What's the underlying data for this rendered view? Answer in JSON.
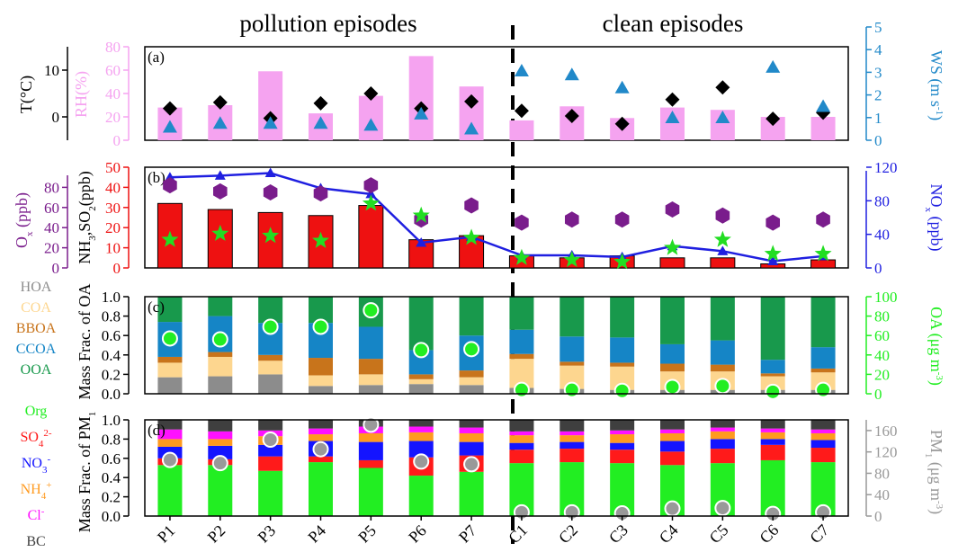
{
  "headings": {
    "left": "pollution episodes",
    "right": "clean episodes"
  },
  "categories": [
    "P1",
    "P2",
    "P3",
    "P4",
    "P5",
    "P6",
    "P7",
    "C1",
    "C2",
    "C3",
    "C4",
    "C5",
    "C6",
    "C7"
  ],
  "colors": {
    "rh": "#f5a3f0",
    "t": "#000000",
    "ws": "#2189c9",
    "so2": "#ee1111",
    "nox": "#1f1fe0",
    "ox": "#7a1d8c",
    "nh3": "#22dd22",
    "hoa": "#8c8c8c",
    "coa": "#fdd68f",
    "bboa": "#c8741b",
    "ccoa": "#1585c6",
    "ooa": "#18994c",
    "org": "#22ee22",
    "so4": "#ff1a1a",
    "no3": "#1414ff",
    "nh4": "#ff9a1f",
    "cl": "#ff11ff",
    "bc": "#3f3f3f",
    "oa_marker": "#22ee22",
    "pm_marker": "#999999"
  },
  "chart_data": [
    {
      "panel": "(a)",
      "type": "bar",
      "left_axis_label": "T(°C)",
      "left_ticks": [
        "0",
        "10"
      ],
      "t_range": [
        -5,
        15
      ],
      "mid_axis_label": "RH(%)",
      "mid_ticks": [
        "0",
        "20",
        "40",
        "60",
        "80"
      ],
      "rh_range": [
        0,
        80
      ],
      "right_axis_label": "WS (m s-1)",
      "right_ticks": [
        "0",
        "1",
        "2",
        "3",
        "4",
        "5"
      ],
      "ws_range": [
        0,
        5
      ],
      "series": [
        {
          "name": "RH",
          "values": [
            28,
            30,
            59,
            23,
            38,
            72,
            46,
            17,
            29,
            19,
            28,
            26,
            20,
            20
          ]
        },
        {
          "name": "T",
          "values": [
            1.8,
            3.1,
            -0.3,
            2.9,
            5.0,
            1.8,
            3.3,
            1.3,
            0.2,
            -1.5,
            3.7,
            6.3,
            -0.4,
            0.9
          ]
        },
        {
          "name": "WS",
          "values": [
            0.7,
            0.9,
            0.9,
            0.9,
            0.8,
            1.4,
            0.6,
            3.7,
            3.5,
            2.8,
            1.2,
            1.2,
            3.9,
            1.8
          ]
        }
      ]
    },
    {
      "panel": "(b)",
      "type": "bar",
      "ox_axis_label": "Ox (ppb)",
      "ox_ticks": [
        "0",
        "20",
        "40",
        "60",
        "80"
      ],
      "ox_range": [
        0,
        100
      ],
      "so2_axis_label": "NH3,SO2(ppb)",
      "so2_ticks": [
        "0",
        "10",
        "20",
        "30",
        "40",
        "50"
      ],
      "so2_range": [
        0,
        50
      ],
      "nox_axis_label": "NOx (ppb)",
      "nox_ticks": [
        "0",
        "40",
        "80",
        "120"
      ],
      "nox_range": [
        0,
        120
      ],
      "series": [
        {
          "name": "SO2",
          "values": [
            32,
            29,
            27.5,
            26,
            31,
            14,
            16,
            6,
            5,
            6,
            5,
            5,
            2,
            4
          ]
        },
        {
          "name": "NOx",
          "values": [
            108,
            110,
            113,
            95,
            88,
            30,
            37,
            15,
            15,
            13,
            26,
            20,
            8,
            14
          ]
        },
        {
          "name": "Ox",
          "values": [
            82,
            76,
            75,
            74,
            82,
            48,
            62,
            45,
            48,
            48,
            58,
            52,
            45,
            48
          ]
        },
        {
          "name": "NH3",
          "values": [
            14,
            17,
            16,
            13.5,
            32,
            26,
            15,
            5,
            4,
            3,
            10,
            14,
            7,
            7
          ]
        }
      ]
    },
    {
      "panel": "(c)",
      "type": "bar",
      "left_axis_label": "Mass Frac. of OA",
      "left_ticks": [
        "0.0",
        "0.2",
        "0.4",
        "0.6",
        "0.8",
        "1.0"
      ],
      "right_axis_label": "OA (μg m-3)",
      "right_ticks": [
        "0",
        "20",
        "40",
        "60",
        "80",
        "100"
      ],
      "oa_range": [
        0,
        100
      ],
      "components": [
        "HOA",
        "COA",
        "BBOA",
        "CCOA",
        "OOA"
      ],
      "fractions": [
        [
          0.17,
          0.15,
          0.06,
          0.36,
          0.26
        ],
        [
          0.18,
          0.2,
          0.05,
          0.37,
          0.2
        ],
        [
          0.2,
          0.14,
          0.06,
          0.33,
          0.27
        ],
        [
          0.08,
          0.11,
          0.18,
          0.36,
          0.27
        ],
        [
          0.09,
          0.11,
          0.16,
          0.33,
          0.31
        ],
        [
          0.1,
          0.05,
          0.05,
          0.25,
          0.55
        ],
        [
          0.09,
          0.08,
          0.07,
          0.36,
          0.4
        ],
        [
          0.06,
          0.3,
          0.05,
          0.25,
          0.34
        ],
        [
          0.05,
          0.24,
          0.04,
          0.26,
          0.41
        ],
        [
          0.04,
          0.24,
          0.04,
          0.26,
          0.42
        ],
        [
          0.04,
          0.19,
          0.08,
          0.2,
          0.49
        ],
        [
          0.04,
          0.19,
          0.07,
          0.25,
          0.45
        ],
        [
          0.04,
          0.14,
          0.03,
          0.14,
          0.65
        ],
        [
          0.04,
          0.18,
          0.04,
          0.22,
          0.52
        ]
      ],
      "oa": [
        57,
        56,
        69,
        69,
        86,
        45,
        46,
        4,
        4,
        3,
        7,
        8,
        2,
        4
      ]
    },
    {
      "panel": "(d)",
      "type": "bar",
      "left_axis_label": "Mass Frac. of PM1",
      "left_ticks": [
        "0.0",
        "0.2",
        "0.4",
        "0.6",
        "0.8",
        "1.0"
      ],
      "right_axis_label": "PM1 (μg m-3)",
      "right_ticks": [
        "0",
        "40",
        "80",
        "120",
        "160"
      ],
      "pm_range": [
        0,
        180
      ],
      "components": [
        "Org",
        "SO42-",
        "NO3-",
        "NH4+",
        "Cl-",
        "BC"
      ],
      "fractions": [
        [
          0.53,
          0.07,
          0.12,
          0.08,
          0.1,
          0.1
        ],
        [
          0.53,
          0.06,
          0.14,
          0.07,
          0.08,
          0.12
        ],
        [
          0.47,
          0.15,
          0.12,
          0.09,
          0.06,
          0.11
        ],
        [
          0.56,
          0.06,
          0.16,
          0.07,
          0.06,
          0.09
        ],
        [
          0.5,
          0.08,
          0.19,
          0.09,
          0.07,
          0.07
        ],
        [
          0.42,
          0.19,
          0.17,
          0.09,
          0.06,
          0.07
        ],
        [
          0.46,
          0.17,
          0.14,
          0.09,
          0.06,
          0.08
        ],
        [
          0.55,
          0.14,
          0.07,
          0.08,
          0.04,
          0.12
        ],
        [
          0.56,
          0.14,
          0.07,
          0.07,
          0.04,
          0.12
        ],
        [
          0.55,
          0.14,
          0.07,
          0.09,
          0.04,
          0.11
        ],
        [
          0.53,
          0.14,
          0.11,
          0.08,
          0.04,
          0.1
        ],
        [
          0.55,
          0.15,
          0.1,
          0.08,
          0.04,
          0.08
        ],
        [
          0.58,
          0.16,
          0.06,
          0.07,
          0.04,
          0.09
        ],
        [
          0.56,
          0.15,
          0.08,
          0.07,
          0.04,
          0.1
        ]
      ],
      "pm1": [
        105,
        99,
        143,
        125,
        171,
        102,
        97,
        7,
        7,
        5,
        14,
        15,
        4,
        7
      ]
    }
  ],
  "labels": {
    "oa_components": [
      "HOA",
      "COA",
      "BBOA",
      "CCOA",
      "OOA"
    ],
    "pm_components": [
      "Org",
      "SO",
      "NO",
      "NH",
      "Cl",
      "BC"
    ],
    "pm_superscripts": [
      "",
      "2-",
      "-",
      "+",
      "-",
      ""
    ],
    "pm_subscripts": [
      "",
      "4",
      "3",
      "4",
      "",
      ""
    ]
  }
}
